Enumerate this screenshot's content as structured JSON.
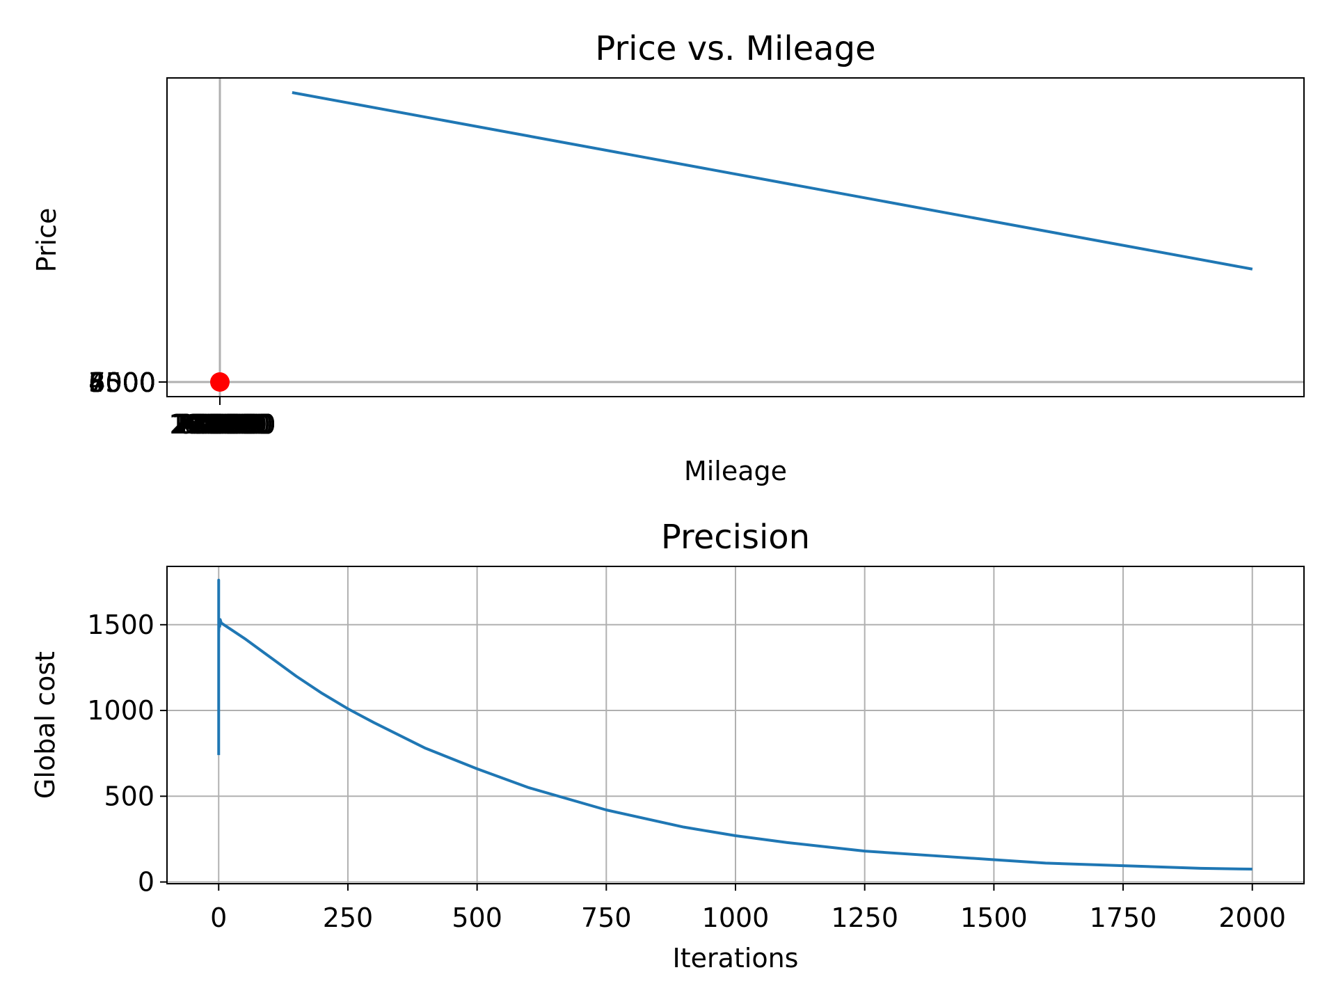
{
  "colors": {
    "line": "#1f77b4",
    "point": "#ff0000",
    "grid": "#b0b0b0",
    "axes": "#000000",
    "background": "#ffffff"
  },
  "chart_data": [
    {
      "type": "line",
      "title": "Price vs. Mileage",
      "xlabel": "Mileage",
      "ylabel": "Price",
      "grid": true,
      "overlapping_x_tick_labels": [
        "20000",
        "40000",
        "60000",
        "80000",
        "100000",
        "120000",
        "140000",
        "160000",
        "180000",
        "200000",
        "220000",
        "240000"
      ],
      "overlapping_y_tick_labels": [
        "3500",
        "4000",
        "4500",
        "5000",
        "5500",
        "6000",
        "6500",
        "7000",
        "7500",
        "8000"
      ],
      "series": [
        {
          "kind": "line",
          "note_units": "plotted in the figure's own data coordinates; axis tick labels overlap at the origin",
          "x": [
            140,
            2000
          ],
          "y": [
            1000,
            390
          ]
        },
        {
          "kind": "scatter",
          "x": [
            0
          ],
          "y": [
            0
          ]
        }
      ]
    },
    {
      "type": "line",
      "title": "Precision",
      "xlabel": "Iterations",
      "ylabel": "Global cost",
      "grid": true,
      "xlim": [
        -100,
        2100
      ],
      "ylim": [
        -10,
        1840
      ],
      "xticks": [
        0,
        250,
        500,
        750,
        1000,
        1250,
        1500,
        1750,
        2000
      ],
      "yticks": [
        0,
        500,
        1000,
        1500
      ],
      "xtick_labels": [
        "0",
        "250",
        "500",
        "750",
        "1000",
        "1250",
        "1500",
        "1750",
        "2000"
      ],
      "ytick_labels": [
        "0",
        "500",
        "1000",
        "1500"
      ],
      "series": [
        {
          "x": [
            0,
            0,
            0,
            1,
            2,
            3,
            5,
            10,
            25,
            50,
            100,
            150,
            200,
            250,
            300,
            400,
            500,
            600,
            750,
            900,
            1000,
            1100,
            1250,
            1400,
            1500,
            1600,
            1750,
            1900,
            2000
          ],
          "y": [
            740,
            1760,
            1450,
            1530,
            1490,
            1530,
            1510,
            1500,
            1470,
            1420,
            1310,
            1200,
            1100,
            1010,
            930,
            780,
            660,
            550,
            420,
            320,
            270,
            230,
            180,
            150,
            130,
            110,
            95,
            80,
            75
          ]
        }
      ]
    }
  ]
}
